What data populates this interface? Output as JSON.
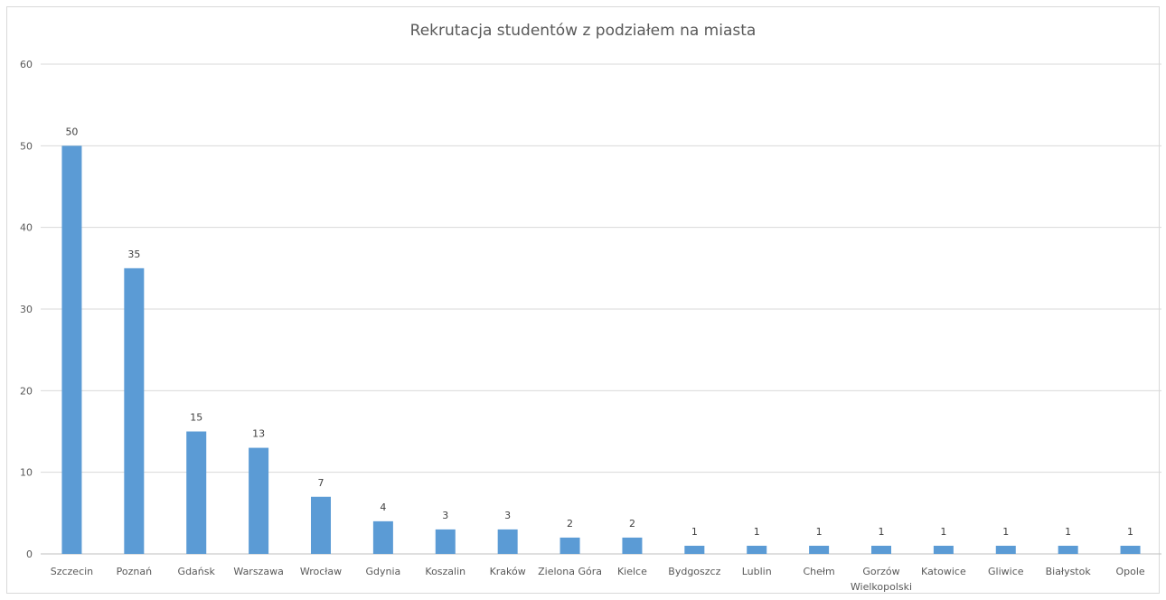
{
  "chart_data": {
    "type": "bar",
    "title": "Rekrutacja studentów z podziałem na miasta",
    "xlabel": "",
    "ylabel": "",
    "ylim": [
      0,
      60
    ],
    "yticks": [
      0,
      10,
      20,
      30,
      40,
      50,
      60
    ],
    "grid": true,
    "legend": "none",
    "colors": {
      "bar": "#5b9bd5",
      "grid": "#d9d9d9",
      "axis": "#bfbfbf"
    },
    "categories": [
      [
        "Szczecin"
      ],
      [
        "Poznań"
      ],
      [
        "Gdańsk"
      ],
      [
        "Warszawa"
      ],
      [
        "Wrocław"
      ],
      [
        "Gdynia"
      ],
      [
        "Koszalin"
      ],
      [
        "Kraków"
      ],
      [
        "Zielona Góra"
      ],
      [
        "Kielce"
      ],
      [
        "Bydgoszcz"
      ],
      [
        "Lublin"
      ],
      [
        "Chełm"
      ],
      [
        "Gorzów",
        "Wielkopolski"
      ],
      [
        "Katowice"
      ],
      [
        "Gliwice"
      ],
      [
        "Białystok"
      ],
      [
        "Opole"
      ]
    ],
    "values": [
      50,
      35,
      15,
      13,
      7,
      4,
      3,
      3,
      2,
      2,
      1,
      1,
      1,
      1,
      1,
      1,
      1,
      1
    ]
  }
}
